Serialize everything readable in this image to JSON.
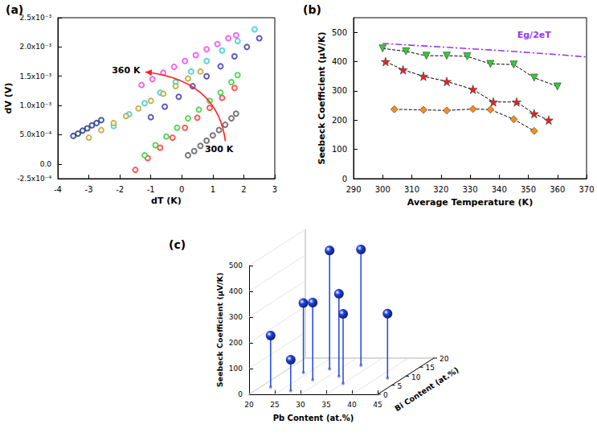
{
  "chart_data": [
    {
      "label": "(a)",
      "type": "scatter",
      "xlabel": "dT (K)",
      "ylabel": "dV (V)",
      "xlim": [
        -4,
        3
      ],
      "xticks": [
        -4,
        -3,
        -2,
        -1,
        0,
        1,
        2,
        3
      ],
      "ylim": [
        -0.00025,
        0.0025
      ],
      "yticks": [
        {
          "value": -0.00025,
          "label": "-2.5x10⁻⁴"
        },
        {
          "value": 0,
          "label": "0.0"
        },
        {
          "value": 0.0005,
          "label": "5.0x10⁻⁴"
        },
        {
          "value": 0.001,
          "label": "1.0x10⁻³"
        },
        {
          "value": 0.0015,
          "label": "1.5x10⁻³"
        },
        {
          "value": 0.002,
          "label": "2.0x10⁻³"
        },
        {
          "value": 0.0025,
          "label": "2.5x10⁻³"
        }
      ],
      "grid": false,
      "marker": "circle_open",
      "series": [
        {
          "color": "#555555",
          "x": [
            0.2,
            0.4,
            0.6,
            0.8,
            1.0,
            1.2,
            1.4,
            1.6,
            1.75
          ],
          "values": [
            0.00015,
            0.00022,
            0.00031,
            0.0004,
            0.00049,
            0.00058,
            0.00067,
            0.00078,
            0.00086
          ]
        },
        {
          "color": "#ff3030",
          "x": [
            -1.5,
            -1.1,
            -0.7,
            -0.3,
            0.1,
            0.5,
            0.9,
            1.3,
            1.7
          ],
          "values": [
            -0.0001,
            0.0001,
            0.00028,
            0.00045,
            0.00062,
            0.00079,
            0.00096,
            0.00113,
            0.0013
          ]
        },
        {
          "color": "#33cc33",
          "x": [
            -1.2,
            -0.85,
            -0.5,
            -0.15,
            0.2,
            0.55,
            0.9,
            1.25,
            1.6,
            1.8
          ],
          "values": [
            0.00015,
            0.00032,
            0.00047,
            0.00062,
            0.00078,
            0.00093,
            0.00108,
            0.00122,
            0.0014,
            0.00152
          ]
        },
        {
          "color": "#3333aa",
          "x": [
            -1.0,
            -0.55,
            -0.1,
            0.35,
            0.8,
            1.25,
            1.7,
            2.1,
            2.5
          ],
          "values": [
            0.0008,
            0.00098,
            0.00115,
            0.00133,
            0.0015,
            0.00167,
            0.00184,
            0.002,
            0.00215
          ]
        },
        {
          "color": "#33cccc",
          "x": [
            -2.2,
            -1.7,
            -1.2,
            -0.7,
            -0.2,
            0.3,
            0.8,
            1.3,
            1.8,
            2.35
          ],
          "values": [
            0.00065,
            0.00085,
            0.00104,
            0.00122,
            0.0014,
            0.00158,
            0.00176,
            0.00194,
            0.0021,
            0.0023
          ]
        },
        {
          "color": "#ee44ee",
          "x": [
            -1.3,
            -0.95,
            -0.6,
            -0.25,
            0.1,
            0.45,
            0.8,
            1.15,
            1.5,
            1.75
          ],
          "values": [
            0.00135,
            0.00145,
            0.00156,
            0.00166,
            0.00176,
            0.00186,
            0.00196,
            0.00205,
            0.00215,
            0.0022
          ]
        },
        {
          "color": "#b8a030",
          "x": [
            -3.0,
            -2.6,
            -2.2,
            -1.8,
            -1.4,
            -1.0,
            -0.6,
            -0.2,
            0.2,
            0.6
          ],
          "values": [
            0.00045,
            0.00058,
            0.0007,
            0.00082,
            0.00095,
            0.00108,
            0.0012,
            0.00133,
            0.00146,
            0.00158
          ]
        },
        {
          "color": "#1a3380",
          "x": [
            -3.5,
            -3.35,
            -3.2,
            -3.05,
            -2.9,
            -2.75,
            -2.6
          ],
          "values": [
            0.00048,
            0.00052,
            0.00057,
            0.00061,
            0.00066,
            0.0007,
            0.00075
          ]
        }
      ],
      "annotations": [
        {
          "text": "360 K",
          "x": -1.8,
          "y": 0.0016,
          "color": "#000000"
        },
        {
          "text": "300 K",
          "x": 1.2,
          "y": 0.00025,
          "color": "#000000"
        }
      ]
    },
    {
      "label": "(b)",
      "type": "line",
      "xlabel": "Average Temperature (K)",
      "ylabel": "Seebeck Coefficient (μV/K)",
      "xlim": [
        290,
        370
      ],
      "xticks": [
        290,
        300,
        310,
        320,
        330,
        340,
        350,
        360,
        370
      ],
      "ylim": [
        0,
        550
      ],
      "yticks": [
        0,
        100,
        200,
        300,
        400,
        500
      ],
      "grid": false,
      "series": [
        {
          "color": "#33cc33",
          "marker": "triangle_down",
          "line_style": "dashed",
          "x": [
            300,
            308,
            315,
            322,
            329,
            337,
            345,
            352,
            360
          ],
          "values": [
            445,
            435,
            420,
            420,
            418,
            392,
            390,
            345,
            315
          ]
        },
        {
          "color": "#ee2222",
          "marker": "star",
          "line_style": "dashed",
          "x": [
            301,
            307,
            314,
            322,
            331,
            338,
            346,
            352,
            357
          ],
          "values": [
            400,
            372,
            350,
            332,
            305,
            262,
            262,
            222,
            200
          ]
        },
        {
          "color": "#ff8c1a",
          "marker": "diamond",
          "line_style": "dashed",
          "x": [
            304,
            314,
            322,
            331,
            337,
            345,
            352
          ],
          "values": [
            237,
            235,
            233,
            238,
            236,
            203,
            163
          ]
        },
        {
          "color": "#9933ff",
          "marker": "none",
          "line_style": "dashdot",
          "x": [
            300,
            310,
            320,
            330,
            340,
            350,
            360,
            370
          ],
          "values": [
            462,
            456,
            450,
            444,
            438,
            431,
            424,
            416
          ]
        }
      ],
      "annotations": [
        {
          "text": "Eg/2eT",
          "x": 352,
          "y": 492,
          "color": "#9933ff"
        }
      ]
    },
    {
      "label": "(c)",
      "type": "scatter3d",
      "xlabel": "Pb Content (at.%)",
      "ylabel": "Bi Content (at.%)",
      "zlabel": "Seebeck Coefficient (μV/K)",
      "xlim": [
        20,
        45
      ],
      "xticks": [
        20,
        25,
        30,
        35,
        40,
        45
      ],
      "ylim": [
        0,
        20
      ],
      "yticks": [
        0,
        5,
        10,
        15,
        20
      ],
      "zlim": [
        0,
        500
      ],
      "zticks": [
        0,
        100,
        200,
        300,
        400,
        500
      ],
      "color": "#2244dd",
      "marker": "circle",
      "x": [
        22,
        24,
        28,
        28,
        27,
        33,
        32,
        35,
        42
      ],
      "y": [
        4,
        12,
        14,
        8,
        2,
        16,
        10,
        6,
        9
      ],
      "z": [
        200,
        270,
        460,
        300,
        120,
        450,
        320,
        270,
        250
      ]
    }
  ]
}
